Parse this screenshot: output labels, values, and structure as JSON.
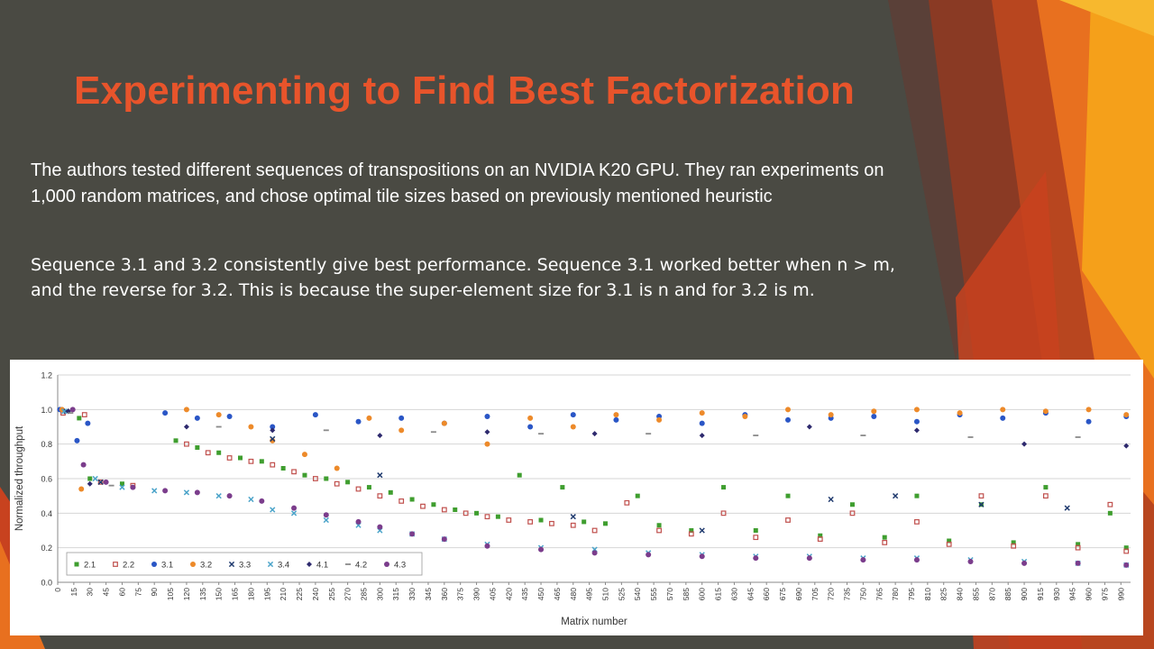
{
  "slide": {
    "title": "Experimenting to Find Best Factorization",
    "para1": "The authors tested different sequences of transpositions on an NVIDIA K20 GPU. They ran experiments on 1,000 random matrices, and chose optimal tile sizes based on previously mentioned heuristic",
    "para2": "Sequence 3.1 and 3.2 consistently give best performance. Sequence 3.1 worked better when n > m, and the reverse for 3.2. This is because the super-element size for 3.1 is n and for 3.2 is m."
  },
  "theme": {
    "background": "#4a4a43",
    "title_color": "#e8542b",
    "accent_colors": [
      "#f5a01a",
      "#e8701f",
      "#c8421f",
      "#8a3a24",
      "#b8461f"
    ]
  },
  "chart_data": {
    "type": "scatter",
    "xlabel": "Matrix number",
    "ylabel": "Normalized throughput",
    "xlim": [
      0,
      999
    ],
    "ylim": [
      0.0,
      1.2
    ],
    "yticks": [
      0.0,
      0.2,
      0.4,
      0.6,
      0.8,
      1.0,
      1.2
    ],
    "yticklabels": [
      "0.0",
      "0.2",
      "0.4",
      "0.6",
      "0.8",
      "1.0",
      "1.2"
    ],
    "xticks": [
      0,
      15,
      30,
      45,
      60,
      75,
      90,
      105,
      120,
      135,
      150,
      165,
      180,
      195,
      210,
      225,
      240,
      255,
      270,
      285,
      300,
      315,
      330,
      345,
      360,
      375,
      390,
      405,
      420,
      435,
      450,
      465,
      480,
      495,
      510,
      525,
      540,
      555,
      570,
      585,
      600,
      615,
      630,
      645,
      660,
      675,
      690,
      705,
      720,
      735,
      750,
      765,
      780,
      795,
      810,
      825,
      840,
      855,
      870,
      885,
      900,
      915,
      930,
      945,
      960,
      975,
      990
    ],
    "grid": true,
    "legend_position": "bottom-left inside",
    "series": [
      {
        "name": "2.1",
        "marker": "square",
        "color": "#3f9e2f",
        "x": [
          3,
          20,
          30,
          60,
          110,
          130,
          150,
          170,
          190,
          210,
          230,
          250,
          270,
          290,
          310,
          330,
          350,
          370,
          390,
          410,
          430,
          450,
          470,
          490,
          510,
          540,
          560,
          590,
          620,
          650,
          680,
          710,
          740,
          770,
          800,
          830,
          860,
          890,
          920,
          950,
          980,
          995
        ],
        "y": [
          1.0,
          0.95,
          0.6,
          0.57,
          0.82,
          0.78,
          0.75,
          0.72,
          0.7,
          0.66,
          0.62,
          0.6,
          0.58,
          0.55,
          0.52,
          0.48,
          0.45,
          0.42,
          0.4,
          0.38,
          0.62,
          0.36,
          0.55,
          0.35,
          0.34,
          0.5,
          0.33,
          0.3,
          0.55,
          0.3,
          0.5,
          0.27,
          0.45,
          0.26,
          0.5,
          0.24,
          0.45,
          0.23,
          0.55,
          0.22,
          0.4,
          0.2
        ]
      },
      {
        "name": "2.2",
        "marker": "square-open",
        "color": "#c0504d",
        "x": [
          5,
          25,
          40,
          70,
          120,
          140,
          160,
          180,
          200,
          220,
          240,
          260,
          280,
          300,
          320,
          340,
          360,
          380,
          400,
          420,
          440,
          460,
          480,
          500,
          530,
          560,
          590,
          620,
          650,
          680,
          710,
          740,
          770,
          800,
          830,
          860,
          890,
          920,
          950,
          980,
          995
        ],
        "y": [
          0.98,
          0.97,
          0.58,
          0.56,
          0.8,
          0.75,
          0.72,
          0.7,
          0.68,
          0.64,
          0.6,
          0.57,
          0.54,
          0.5,
          0.47,
          0.44,
          0.42,
          0.4,
          0.38,
          0.36,
          0.35,
          0.34,
          0.33,
          0.3,
          0.46,
          0.3,
          0.28,
          0.4,
          0.26,
          0.36,
          0.25,
          0.4,
          0.23,
          0.35,
          0.22,
          0.5,
          0.21,
          0.5,
          0.2,
          0.45,
          0.18
        ]
      },
      {
        "name": "3.1",
        "marker": "circle",
        "color": "#2a56c6",
        "x": [
          2,
          18,
          28,
          100,
          130,
          160,
          200,
          240,
          280,
          320,
          360,
          400,
          440,
          480,
          520,
          560,
          600,
          640,
          680,
          720,
          760,
          800,
          840,
          880,
          920,
          960,
          995
        ],
        "y": [
          1.0,
          0.82,
          0.92,
          0.98,
          0.95,
          0.96,
          0.9,
          0.97,
          0.93,
          0.95,
          0.92,
          0.96,
          0.9,
          0.97,
          0.94,
          0.96,
          0.92,
          0.97,
          0.94,
          0.95,
          0.96,
          0.93,
          0.97,
          0.95,
          0.98,
          0.93,
          0.96
        ]
      },
      {
        "name": "3.2",
        "marker": "circle",
        "color": "#ed8a2a",
        "x": [
          4,
          22,
          120,
          150,
          180,
          200,
          230,
          260,
          290,
          320,
          360,
          400,
          440,
          480,
          520,
          560,
          600,
          640,
          680,
          720,
          760,
          800,
          840,
          880,
          920,
          960,
          995
        ],
        "y": [
          1.0,
          0.54,
          1.0,
          0.97,
          0.9,
          0.82,
          0.74,
          0.66,
          0.95,
          0.88,
          0.92,
          0.8,
          0.95,
          0.9,
          0.97,
          0.94,
          0.98,
          0.96,
          1.0,
          0.97,
          0.99,
          1.0,
          0.98,
          1.0,
          0.99,
          1.0,
          0.97
        ]
      },
      {
        "name": "3.3",
        "marker": "x",
        "color": "#1f3a6e",
        "x": [
          8,
          40,
          200,
          300,
          480,
          600,
          720,
          780,
          860,
          940
        ],
        "y": [
          0.99,
          0.58,
          0.83,
          0.62,
          0.38,
          0.3,
          0.48,
          0.5,
          0.45,
          0.43
        ]
      },
      {
        "name": "3.4",
        "marker": "x",
        "color": "#4aa3c9",
        "x": [
          6,
          35,
          60,
          90,
          120,
          150,
          180,
          200,
          220,
          250,
          280,
          300,
          330,
          360,
          400,
          450,
          500,
          550,
          600,
          650,
          700,
          750,
          800,
          850,
          900,
          950,
          995
        ],
        "y": [
          0.99,
          0.6,
          0.55,
          0.53,
          0.52,
          0.5,
          0.48,
          0.42,
          0.4,
          0.36,
          0.33,
          0.3,
          0.28,
          0.25,
          0.22,
          0.2,
          0.19,
          0.17,
          0.16,
          0.15,
          0.15,
          0.14,
          0.14,
          0.13,
          0.12,
          0.11,
          0.1
        ]
      },
      {
        "name": "4.1",
        "marker": "diamond",
        "color": "#2e2a6e",
        "x": [
          10,
          30,
          120,
          200,
          300,
          400,
          500,
          600,
          700,
          800,
          900,
          995
        ],
        "y": [
          0.99,
          0.57,
          0.9,
          0.88,
          0.85,
          0.87,
          0.86,
          0.85,
          0.9,
          0.88,
          0.8,
          0.79
        ]
      },
      {
        "name": "4.2",
        "marker": "dash",
        "color": "#8a8a8a",
        "x": [
          12,
          50,
          150,
          250,
          350,
          450,
          550,
          650,
          750,
          850,
          950
        ],
        "y": [
          0.98,
          0.56,
          0.9,
          0.88,
          0.87,
          0.86,
          0.86,
          0.85,
          0.85,
          0.84,
          0.84
        ]
      },
      {
        "name": "4.3",
        "marker": "circle",
        "color": "#7b3d8c",
        "x": [
          14,
          24,
          45,
          70,
          100,
          130,
          160,
          190,
          220,
          250,
          280,
          300,
          330,
          360,
          400,
          450,
          500,
          550,
          600,
          650,
          700,
          750,
          800,
          850,
          900,
          950,
          995
        ],
        "y": [
          1.0,
          0.68,
          0.58,
          0.55,
          0.53,
          0.52,
          0.5,
          0.47,
          0.43,
          0.39,
          0.35,
          0.32,
          0.28,
          0.25,
          0.21,
          0.19,
          0.17,
          0.16,
          0.15,
          0.14,
          0.14,
          0.13,
          0.13,
          0.12,
          0.11,
          0.11,
          0.1
        ]
      }
    ]
  }
}
